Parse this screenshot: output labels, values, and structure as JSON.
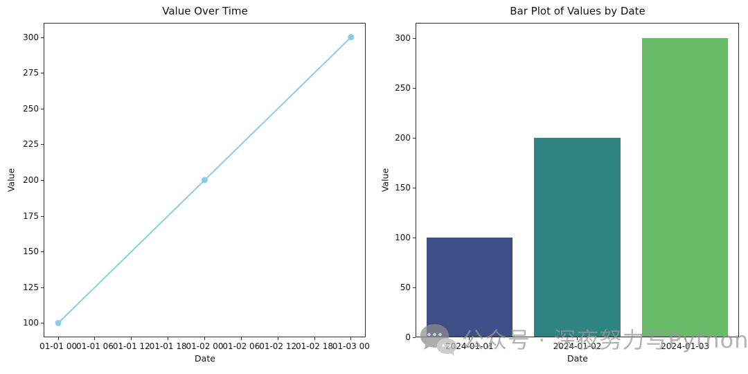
{
  "chart_data": [
    {
      "type": "line",
      "title": "Value Over Time",
      "xlabel": "Date",
      "ylabel": "Value",
      "x_tick_labels": [
        "01-01 00",
        "01-01 06",
        "01-01 12",
        "01-01 18",
        "01-02 00",
        "01-02 06",
        "01-02 12",
        "01-02 18",
        "01-03 00"
      ],
      "x_tick_hours": [
        0,
        6,
        12,
        18,
        24,
        30,
        36,
        42,
        48
      ],
      "y_ticks": [
        100,
        125,
        150,
        175,
        200,
        225,
        250,
        275,
        300
      ],
      "xlim": [
        -2.4,
        50.4
      ],
      "ylim": [
        90,
        310
      ],
      "points": [
        {
          "x_hours": 0,
          "date": "2024-01-01 00:00",
          "value": 100
        },
        {
          "x_hours": 24,
          "date": "2024-01-02 00:00",
          "value": 200
        },
        {
          "x_hours": 48,
          "date": "2024-01-03 00:00",
          "value": 300
        }
      ],
      "line_color": "#87ceeb",
      "marker": "circle",
      "grid": false,
      "legend": "none"
    },
    {
      "type": "bar",
      "title": "Bar Plot of Values by Date",
      "xlabel": "Date",
      "ylabel": "Value",
      "categories": [
        "2024-01-01",
        "2024-01-02",
        "2024-01-03"
      ],
      "values": [
        100,
        200,
        300
      ],
      "bar_colors": [
        "#3f4e87",
        "#2e8480",
        "#68bb66"
      ],
      "y_ticks": [
        0,
        50,
        100,
        150,
        200,
        250,
        300
      ],
      "ylim": [
        0,
        315
      ],
      "bar_width_frac": 0.8,
      "grid": false,
      "legend": "none"
    }
  ],
  "watermark": {
    "icon": "wechat-chat-bubbles-icon",
    "text": "公众号 · 深夜努力写Python",
    "color": "#979797"
  }
}
